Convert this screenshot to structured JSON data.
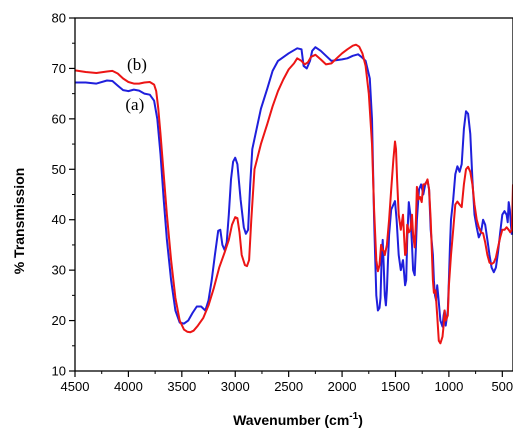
{
  "chart_data": {
    "type": "line",
    "title": "",
    "xlabel": "Wavenumber (cm",
    "xlabel_sup": "-1",
    "xlabel_close": ")",
    "ylabel": "% Transmission",
    "xlim": [
      4500,
      400
    ],
    "ylim": [
      10,
      80
    ],
    "x_reversed": true,
    "grid": false,
    "x_ticks": [
      4500,
      4000,
      3500,
      3000,
      2500,
      2000,
      1500,
      1000,
      500
    ],
    "y_ticks": [
      10,
      20,
      30,
      40,
      50,
      60,
      70,
      80
    ],
    "series": [
      {
        "name": "(a)",
        "color": "#1f1fdc",
        "points": [
          [
            4500,
            67.2
          ],
          [
            4400,
            67.2
          ],
          [
            4300,
            67.0
          ],
          [
            4200,
            67.6
          ],
          [
            4150,
            67.5
          ],
          [
            4100,
            66.6
          ],
          [
            4050,
            65.7
          ],
          [
            4000,
            65.5
          ],
          [
            3950,
            65.8
          ],
          [
            3900,
            65.6
          ],
          [
            3850,
            65.0
          ],
          [
            3800,
            64.8
          ],
          [
            3760,
            63.6
          ],
          [
            3730,
            60.0
          ],
          [
            3700,
            53.0
          ],
          [
            3670,
            44.0
          ],
          [
            3640,
            36.0
          ],
          [
            3600,
            28.0
          ],
          [
            3560,
            22.0
          ],
          [
            3520,
            19.6
          ],
          [
            3480,
            19.4
          ],
          [
            3440,
            20.0
          ],
          [
            3400,
            21.5
          ],
          [
            3360,
            22.8
          ],
          [
            3320,
            22.8
          ],
          [
            3280,
            22.0
          ],
          [
            3250,
            24.0
          ],
          [
            3220,
            28.0
          ],
          [
            3190,
            33.0
          ],
          [
            3160,
            37.8
          ],
          [
            3140,
            38.0
          ],
          [
            3120,
            35.0
          ],
          [
            3100,
            34.0
          ],
          [
            3080,
            35.5
          ],
          [
            3060,
            41.0
          ],
          [
            3040,
            48.0
          ],
          [
            3020,
            51.5
          ],
          [
            3000,
            52.3
          ],
          [
            2980,
            51.0
          ],
          [
            2950,
            44.0
          ],
          [
            2920,
            38.5
          ],
          [
            2900,
            37.2
          ],
          [
            2880,
            38.0
          ],
          [
            2860,
            47.0
          ],
          [
            2840,
            54.0
          ],
          [
            2800,
            58.0
          ],
          [
            2760,
            62.0
          ],
          [
            2700,
            66.0
          ],
          [
            2650,
            69.5
          ],
          [
            2600,
            71.5
          ],
          [
            2500,
            73.0
          ],
          [
            2420,
            74.0
          ],
          [
            2380,
            73.8
          ],
          [
            2360,
            70.5
          ],
          [
            2330,
            70.0
          ],
          [
            2300,
            71.5
          ],
          [
            2280,
            73.5
          ],
          [
            2250,
            74.2
          ],
          [
            2200,
            73.5
          ],
          [
            2150,
            72.5
          ],
          [
            2100,
            71.5
          ],
          [
            2000,
            71.8
          ],
          [
            1950,
            72.0
          ],
          [
            1900,
            72.5
          ],
          [
            1850,
            72.8
          ],
          [
            1820,
            72.3
          ],
          [
            1780,
            71.5
          ],
          [
            1740,
            68.0
          ],
          [
            1720,
            60.0
          ],
          [
            1700,
            40.0
          ],
          [
            1680,
            25.0
          ],
          [
            1665,
            22.0
          ],
          [
            1650,
            22.5
          ],
          [
            1640,
            24.5
          ],
          [
            1630,
            32.0
          ],
          [
            1620,
            36.0
          ],
          [
            1610,
            31.0
          ],
          [
            1600,
            25.0
          ],
          [
            1590,
            23.0
          ],
          [
            1580,
            26.0
          ],
          [
            1570,
            32.0
          ],
          [
            1560,
            37.0
          ],
          [
            1540,
            42.0
          ],
          [
            1520,
            43.0
          ],
          [
            1505,
            43.7
          ],
          [
            1490,
            40.0
          ],
          [
            1470,
            33.0
          ],
          [
            1450,
            30.0
          ],
          [
            1430,
            32.0
          ],
          [
            1410,
            27.0
          ],
          [
            1400,
            28.0
          ],
          [
            1390,
            36.0
          ],
          [
            1375,
            43.5
          ],
          [
            1360,
            41.0
          ],
          [
            1345,
            35.0
          ],
          [
            1335,
            30.0
          ],
          [
            1320,
            29.0
          ],
          [
            1310,
            34.0
          ],
          [
            1300,
            40.0
          ],
          [
            1280,
            46.0
          ],
          [
            1260,
            47.0
          ],
          [
            1240,
            45.0
          ],
          [
            1220,
            47.2
          ],
          [
            1200,
            47.8
          ],
          [
            1185,
            46.0
          ],
          [
            1170,
            38.0
          ],
          [
            1150,
            33.0
          ],
          [
            1140,
            28.0
          ],
          [
            1130,
            25.0
          ],
          [
            1120,
            24.0
          ],
          [
            1110,
            27.0
          ],
          [
            1100,
            25.0
          ],
          [
            1080,
            20.0
          ],
          [
            1060,
            18.8
          ],
          [
            1050,
            21.0
          ],
          [
            1040,
            22.0
          ],
          [
            1030,
            19.0
          ],
          [
            1010,
            22.0
          ],
          [
            1000,
            28.0
          ],
          [
            990,
            35.0
          ],
          [
            980,
            40.0
          ],
          [
            960,
            44.0
          ],
          [
            940,
            49.0
          ],
          [
            920,
            50.6
          ],
          [
            900,
            49.5
          ],
          [
            880,
            51.0
          ],
          [
            860,
            58.0
          ],
          [
            840,
            61.5
          ],
          [
            820,
            61.0
          ],
          [
            800,
            57.0
          ],
          [
            780,
            48.0
          ],
          [
            760,
            41.0
          ],
          [
            740,
            38.5
          ],
          [
            720,
            36.5
          ],
          [
            700,
            37.5
          ],
          [
            680,
            40.0
          ],
          [
            660,
            39.0
          ],
          [
            640,
            36.0
          ],
          [
            620,
            33.0
          ],
          [
            600,
            30.5
          ],
          [
            580,
            29.6
          ],
          [
            560,
            30.5
          ],
          [
            540,
            33.5
          ],
          [
            520,
            37.5
          ],
          [
            500,
            41.0
          ],
          [
            480,
            41.7
          ],
          [
            460,
            41.0
          ],
          [
            450,
            39.5
          ],
          [
            440,
            43.5
          ],
          [
            430,
            42.0
          ],
          [
            420,
            39.0
          ],
          [
            410,
            37.0
          ]
        ]
      },
      {
        "name": "(b)",
        "color": "#ec1515",
        "points": [
          [
            4500,
            69.6
          ],
          [
            4400,
            69.3
          ],
          [
            4300,
            69.1
          ],
          [
            4200,
            69.4
          ],
          [
            4150,
            69.5
          ],
          [
            4100,
            69.0
          ],
          [
            4050,
            68.0
          ],
          [
            4000,
            67.3
          ],
          [
            3950,
            67.0
          ],
          [
            3900,
            67.0
          ],
          [
            3850,
            67.2
          ],
          [
            3800,
            67.3
          ],
          [
            3760,
            66.8
          ],
          [
            3740,
            65.5
          ],
          [
            3720,
            62.0
          ],
          [
            3700,
            57.0
          ],
          [
            3670,
            49.0
          ],
          [
            3640,
            41.0
          ],
          [
            3600,
            32.0
          ],
          [
            3560,
            24.5
          ],
          [
            3520,
            20.0
          ],
          [
            3480,
            18.2
          ],
          [
            3450,
            17.8
          ],
          [
            3420,
            17.7
          ],
          [
            3390,
            18.0
          ],
          [
            3350,
            19.0
          ],
          [
            3300,
            20.5
          ],
          [
            3250,
            23.0
          ],
          [
            3200,
            26.5
          ],
          [
            3150,
            30.5
          ],
          [
            3100,
            33.5
          ],
          [
            3060,
            36.0
          ],
          [
            3030,
            39.0
          ],
          [
            3000,
            40.5
          ],
          [
            2980,
            40.3
          ],
          [
            2960,
            37.5
          ],
          [
            2940,
            33.0
          ],
          [
            2910,
            31.0
          ],
          [
            2890,
            30.8
          ],
          [
            2870,
            32.0
          ],
          [
            2850,
            40.0
          ],
          [
            2820,
            50.0
          ],
          [
            2760,
            55.0
          ],
          [
            2700,
            59.0
          ],
          [
            2650,
            62.5
          ],
          [
            2600,
            65.5
          ],
          [
            2550,
            67.8
          ],
          [
            2500,
            69.8
          ],
          [
            2450,
            71.0
          ],
          [
            2420,
            72.0
          ],
          [
            2380,
            71.5
          ],
          [
            2350,
            70.8
          ],
          [
            2320,
            71.2
          ],
          [
            2290,
            72.3
          ],
          [
            2250,
            72.7
          ],
          [
            2200,
            71.8
          ],
          [
            2150,
            70.8
          ],
          [
            2100,
            71.0
          ],
          [
            2050,
            72.0
          ],
          [
            2000,
            73.0
          ],
          [
            1950,
            73.8
          ],
          [
            1900,
            74.5
          ],
          [
            1870,
            74.7
          ],
          [
            1840,
            74.3
          ],
          [
            1810,
            73.0
          ],
          [
            1780,
            70.5
          ],
          [
            1750,
            65.0
          ],
          [
            1720,
            55.0
          ],
          [
            1700,
            42.0
          ],
          [
            1680,
            32.0
          ],
          [
            1665,
            29.8
          ],
          [
            1650,
            31.0
          ],
          [
            1635,
            35.0
          ],
          [
            1620,
            34.0
          ],
          [
            1610,
            33.8
          ],
          [
            1600,
            33.0
          ],
          [
            1580,
            35.0
          ],
          [
            1560,
            40.0
          ],
          [
            1540,
            46.0
          ],
          [
            1520,
            52.0
          ],
          [
            1505,
            55.5
          ],
          [
            1495,
            54.0
          ],
          [
            1485,
            48.0
          ],
          [
            1470,
            41.0
          ],
          [
            1450,
            38.0
          ],
          [
            1430,
            41.0
          ],
          [
            1420,
            37.0
          ],
          [
            1410,
            33.0
          ],
          [
            1400,
            33.5
          ],
          [
            1390,
            39.0
          ],
          [
            1375,
            37.5
          ],
          [
            1360,
            38.0
          ],
          [
            1345,
            41.0
          ],
          [
            1335,
            37.0
          ],
          [
            1320,
            34.5
          ],
          [
            1310,
            39.0
          ],
          [
            1300,
            46.5
          ],
          [
            1285,
            44.0
          ],
          [
            1270,
            44.5
          ],
          [
            1255,
            43.5
          ],
          [
            1240,
            47.0
          ],
          [
            1220,
            47.0
          ],
          [
            1200,
            48.0
          ],
          [
            1185,
            46.0
          ],
          [
            1170,
            40.0
          ],
          [
            1150,
            28.0
          ],
          [
            1140,
            25.5
          ],
          [
            1125,
            26.0
          ],
          [
            1110,
            21.0
          ],
          [
            1095,
            16.0
          ],
          [
            1080,
            15.5
          ],
          [
            1060,
            16.8
          ],
          [
            1050,
            19.0
          ],
          [
            1040,
            22.0
          ],
          [
            1030,
            20.0
          ],
          [
            1010,
            21.0
          ],
          [
            1000,
            27.0
          ],
          [
            980,
            33.0
          ],
          [
            960,
            38.0
          ],
          [
            940,
            43.0
          ],
          [
            920,
            43.6
          ],
          [
            900,
            43.0
          ],
          [
            880,
            42.5
          ],
          [
            860,
            47.0
          ],
          [
            840,
            50.0
          ],
          [
            820,
            50.5
          ],
          [
            800,
            49.5
          ],
          [
            780,
            47.0
          ],
          [
            760,
            43.0
          ],
          [
            740,
            40.0
          ],
          [
            720,
            38.5
          ],
          [
            700,
            37.5
          ],
          [
            680,
            37.3
          ],
          [
            660,
            35.5
          ],
          [
            640,
            33.0
          ],
          [
            620,
            31.5
          ],
          [
            600,
            31.2
          ],
          [
            580,
            31.5
          ],
          [
            560,
            32.5
          ],
          [
            540,
            34.5
          ],
          [
            520,
            36.5
          ],
          [
            500,
            38.0
          ],
          [
            480,
            38.0
          ],
          [
            460,
            38.5
          ],
          [
            440,
            38.0
          ],
          [
            425,
            37.5
          ],
          [
            410,
            38.0
          ],
          [
            400,
            47.0
          ]
        ]
      }
    ],
    "annotations": [
      {
        "text": "(b)",
        "x": 3920,
        "y": 69.7,
        "series": "(b)"
      },
      {
        "text": "(a)",
        "x": 3940,
        "y": 61.8,
        "series": "(a)"
      }
    ]
  }
}
